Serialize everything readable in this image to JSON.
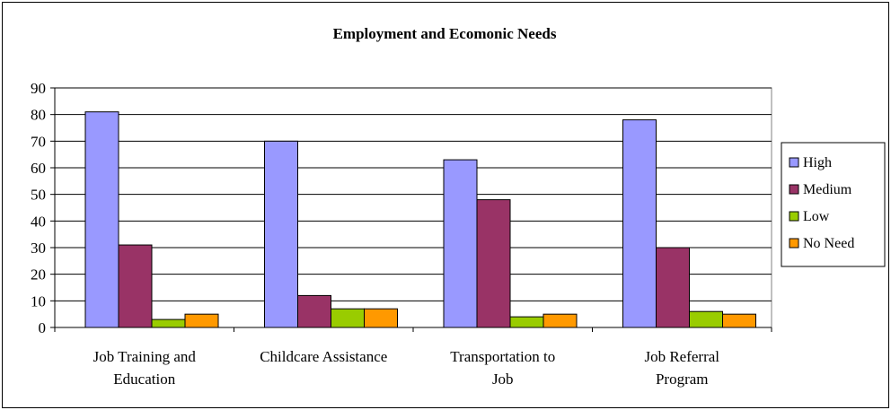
{
  "chart_data": {
    "type": "bar",
    "title": "Employment and Ecomonic Needs",
    "xlabel": "",
    "ylabel": "",
    "ylim": [
      0,
      90
    ],
    "yticks": [
      "0",
      "10",
      "20",
      "30",
      "40",
      "50",
      "60",
      "70",
      "80",
      "90"
    ],
    "categories": [
      [
        "Job Training and",
        "Education"
      ],
      [
        "Childcare Assistance"
      ],
      [
        "Transportation to",
        "Job"
      ],
      [
        "Job Referral",
        "Program"
      ]
    ],
    "series": [
      {
        "name": "High",
        "color": "#9999FF",
        "values": [
          81,
          70,
          63,
          78
        ]
      },
      {
        "name": "Medium",
        "color": "#993366",
        "values": [
          31,
          12,
          48,
          30
        ]
      },
      {
        "name": "Low",
        "color": "#99CC00",
        "values": [
          3,
          7,
          4,
          6
        ]
      },
      {
        "name": "No Need",
        "color": "#FF9900",
        "values": [
          5,
          7,
          5,
          5
        ]
      }
    ],
    "grid": true,
    "legend": "right"
  }
}
